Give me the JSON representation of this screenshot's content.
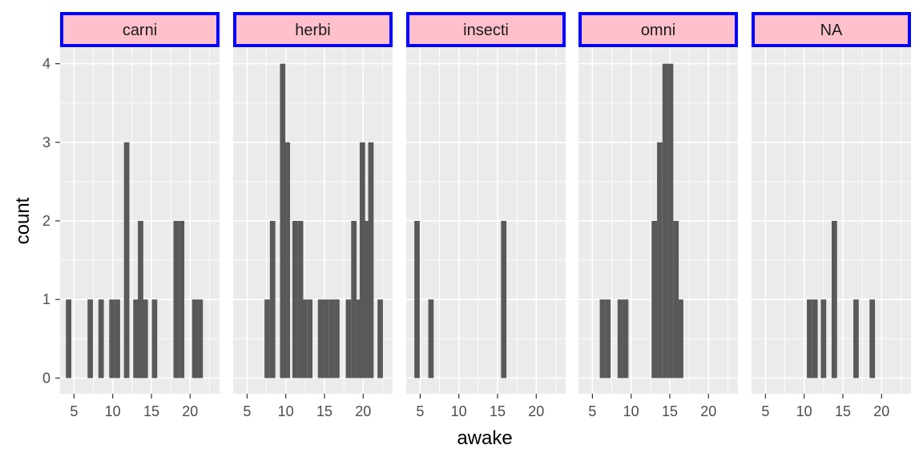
{
  "chart_data": {
    "type": "bar",
    "subtype": "faceted-histogram",
    "xlabel": "awake",
    "ylabel": "count",
    "xlim": [
      3.2,
      23.8
    ],
    "ylim": [
      -0.2,
      4.2
    ],
    "x_ticks": [
      5,
      10,
      15,
      20
    ],
    "y_ticks": [
      0,
      1,
      2,
      3,
      4
    ],
    "grid": true,
    "bin_width": 0.7,
    "colors": {
      "bar": "#595959",
      "panel": "#ebebeb",
      "strip_fill": "#ffc0cb",
      "strip_border": "#0000ff"
    },
    "facets": [
      {
        "label": "carni",
        "bins": [
          {
            "x": 4.3,
            "count": 1
          },
          {
            "x": 7.1,
            "count": 1
          },
          {
            "x": 8.5,
            "count": 1
          },
          {
            "x": 9.9,
            "count": 1
          },
          {
            "x": 10.6,
            "count": 1
          },
          {
            "x": 11.8,
            "count": 3
          },
          {
            "x": 13.0,
            "count": 1
          },
          {
            "x": 13.6,
            "count": 2
          },
          {
            "x": 14.2,
            "count": 1
          },
          {
            "x": 15.4,
            "count": 1
          },
          {
            "x": 18.2,
            "count": 2
          },
          {
            "x": 18.9,
            "count": 2
          },
          {
            "x": 20.6,
            "count": 1
          },
          {
            "x": 21.3,
            "count": 1
          }
        ]
      },
      {
        "label": "herbi",
        "bins": [
          {
            "x": 7.6,
            "count": 1
          },
          {
            "x": 8.3,
            "count": 2
          },
          {
            "x": 9.6,
            "count": 4
          },
          {
            "x": 10.2,
            "count": 3
          },
          {
            "x": 11.2,
            "count": 2
          },
          {
            "x": 11.9,
            "count": 2
          },
          {
            "x": 12.4,
            "count": 1
          },
          {
            "x": 13.1,
            "count": 1
          },
          {
            "x": 14.5,
            "count": 1
          },
          {
            "x": 15.2,
            "count": 1
          },
          {
            "x": 15.9,
            "count": 1
          },
          {
            "x": 16.6,
            "count": 1
          },
          {
            "x": 18.1,
            "count": 1
          },
          {
            "x": 18.8,
            "count": 2
          },
          {
            "x": 19.5,
            "count": 1
          },
          {
            "x": 19.9,
            "count": 3
          },
          {
            "x": 20.4,
            "count": 2
          },
          {
            "x": 21.0,
            "count": 3
          },
          {
            "x": 22.2,
            "count": 1
          }
        ]
      },
      {
        "label": "insecti",
        "bins": [
          {
            "x": 4.6,
            "count": 2
          },
          {
            "x": 6.4,
            "count": 1
          },
          {
            "x": 15.8,
            "count": 2
          }
        ]
      },
      {
        "label": "omni",
        "bins": [
          {
            "x": 6.3,
            "count": 1
          },
          {
            "x": 7.0,
            "count": 1
          },
          {
            "x": 8.6,
            "count": 1
          },
          {
            "x": 9.3,
            "count": 1
          },
          {
            "x": 13.0,
            "count": 2
          },
          {
            "x": 13.7,
            "count": 3
          },
          {
            "x": 14.4,
            "count": 4
          },
          {
            "x": 15.1,
            "count": 4
          },
          {
            "x": 15.8,
            "count": 2
          },
          {
            "x": 16.4,
            "count": 1
          }
        ]
      },
      {
        "label": "NA",
        "bins": [
          {
            "x": 10.7,
            "count": 1
          },
          {
            "x": 11.4,
            "count": 1
          },
          {
            "x": 12.5,
            "count": 1
          },
          {
            "x": 13.9,
            "count": 2
          },
          {
            "x": 16.7,
            "count": 1
          },
          {
            "x": 18.8,
            "count": 1
          }
        ]
      }
    ]
  }
}
